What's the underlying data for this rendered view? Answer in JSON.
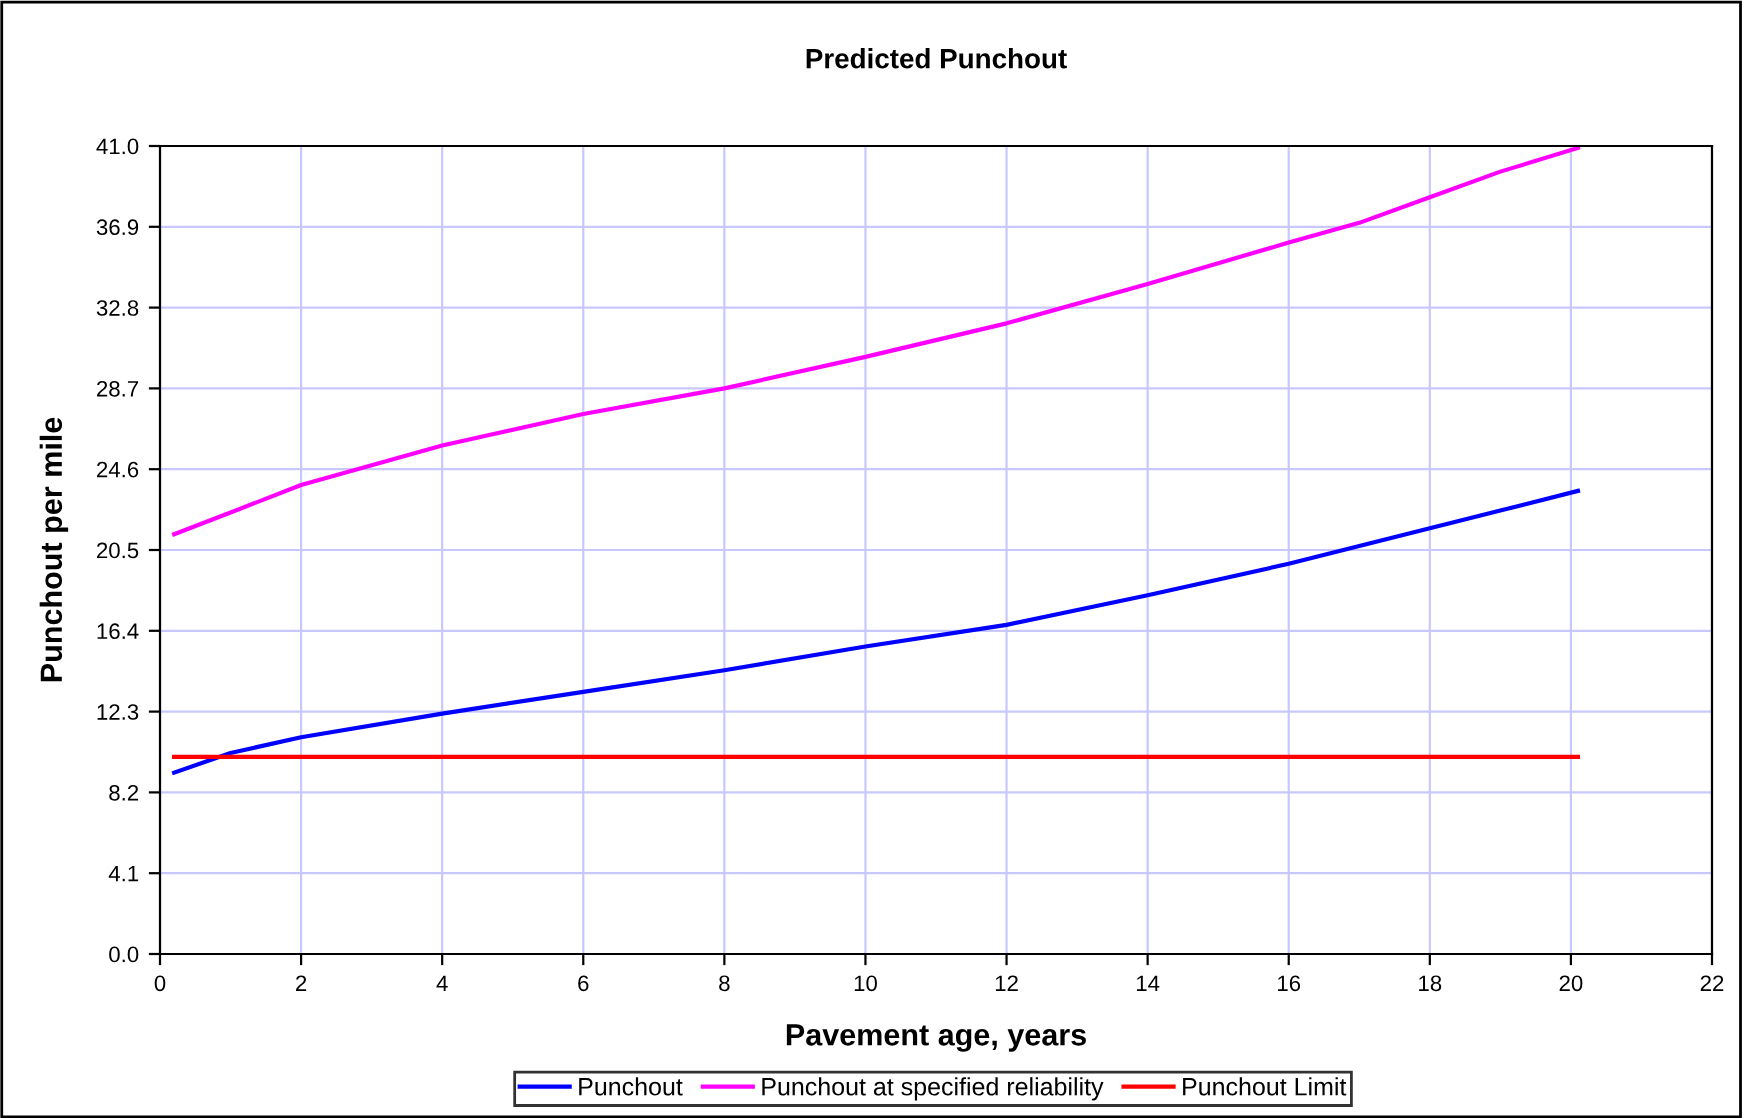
{
  "chart_data": {
    "type": "line",
    "title": "Predicted Punchout",
    "xlabel": "Pavement age, years",
    "ylabel": "Punchout per mile",
    "xlim": [
      0,
      22
    ],
    "xticks": [
      0,
      2,
      4,
      6,
      8,
      10,
      12,
      14,
      16,
      18,
      20,
      22
    ],
    "ylim": [
      0,
      41
    ],
    "yticks": [
      {
        "value": 0,
        "label": "0.0"
      },
      4.1,
      8.2,
      12.3,
      16.4,
      20.5,
      24.6,
      28.7,
      32.8,
      36.9,
      {
        "value": 41,
        "label": "41.0"
      }
    ],
    "grid": true,
    "legend": "bottom",
    "line_style": "solid",
    "marker": "none",
    "series": [
      {
        "name": "Punchout",
        "color": "#0000ff",
        "x": [
          0.2,
          1,
          2,
          4,
          6,
          8,
          10,
          12,
          14,
          16,
          17,
          18,
          19,
          20.1
        ],
        "values": [
          9.2,
          10.2,
          11.0,
          12.2,
          13.3,
          14.4,
          15.6,
          16.7,
          18.2,
          19.8,
          20.7,
          21.6,
          22.5,
          23.5
        ]
      },
      {
        "name": "Punchout at specified reliability",
        "color": "#ff00ff",
        "x": [
          0.2,
          1,
          2,
          4,
          6,
          8,
          10,
          12,
          14,
          16,
          17,
          18,
          19,
          20.1
        ],
        "values": [
          21.3,
          22.4,
          23.8,
          25.8,
          27.4,
          28.7,
          30.3,
          32.0,
          34.0,
          36.1,
          37.1,
          38.4,
          39.7,
          40.9
        ]
      },
      {
        "name": "Punchout Limit",
        "color": "#ff0000",
        "x": [
          0.2,
          20.1
        ],
        "values": [
          10.0,
          10.0
        ]
      }
    ]
  }
}
